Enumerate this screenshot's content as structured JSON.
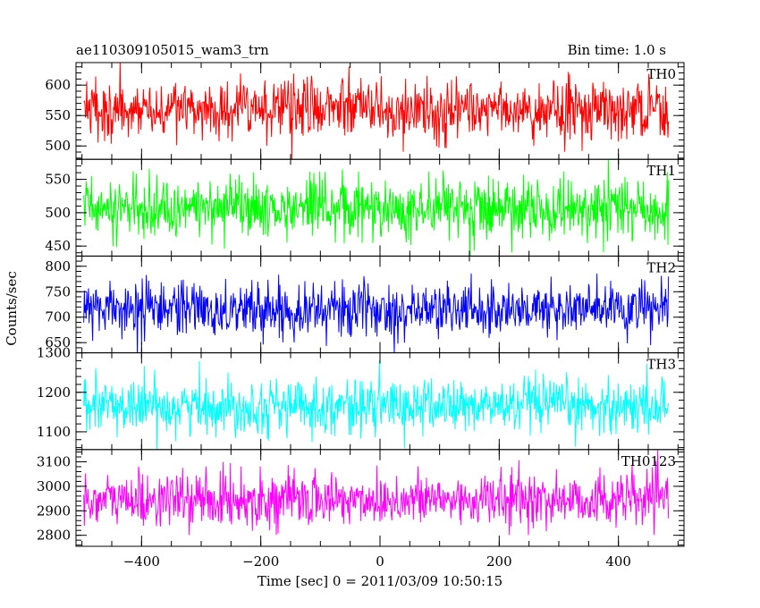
{
  "chart_data": {
    "type": "line",
    "title": "ae110309105015_wam3_trn",
    "subtitle": "Bin time: 1.0 s",
    "xlabel": "Time [sec] 0 = 2011/03/09 10:50:15",
    "ylabel": "Counts/sec",
    "xlim": [
      -510,
      510
    ],
    "x_start": -497,
    "x_end": 484,
    "x_step": 1,
    "xticks": [
      -400,
      -200,
      0,
      200,
      400
    ],
    "grid": false,
    "panels": [
      {
        "name": "TH0",
        "color": "#ff0000",
        "ylim": [
          478,
          637
        ],
        "yticks": [
          500,
          550,
          600
        ],
        "mean": 560,
        "sigma": 23.5
      },
      {
        "name": "TH1",
        "color": "#00ff00",
        "ylim": [
          435,
          580
        ],
        "yticks": [
          450,
          500,
          550
        ],
        "mean": 505,
        "sigma": 22.4
      },
      {
        "name": "TH2",
        "color": "#0000ff",
        "ylim": [
          630,
          820
        ],
        "yticks": [
          650,
          700,
          750,
          800
        ],
        "mean": 715,
        "sigma": 26.7
      },
      {
        "name": "TH3",
        "color": "#00ffff",
        "ylim": [
          1055,
          1300
        ],
        "yticks": [
          1100,
          1200,
          1300
        ],
        "mean": 1165,
        "sigma": 34.1
      },
      {
        "name": "TH0123",
        "color": "#ff00ff",
        "ylim": [
          2755,
          3150
        ],
        "yticks": [
          2800,
          2900,
          3000,
          3100
        ],
        "mean": 2945,
        "sigma": 54.3
      }
    ]
  }
}
